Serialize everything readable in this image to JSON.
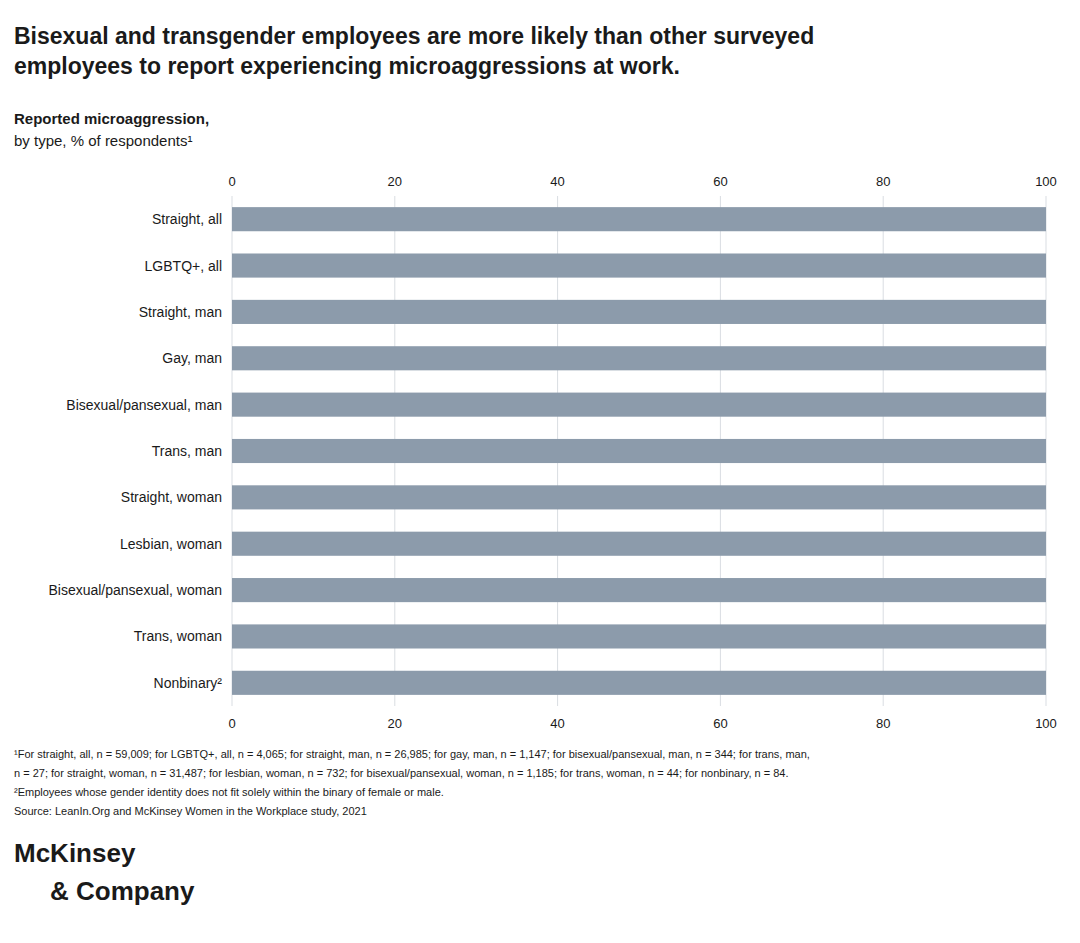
{
  "chart_data": {
    "type": "bar",
    "orientation": "horizontal",
    "title": "Bisexual and transgender employees are more likely than other surveyed\nemployees to report experiencing microaggressions at work.",
    "subtitle": "Reported microaggression,\nby type, % of respondents¹",
    "categories": [
      "Straight, all",
      "LGBTQ+, all",
      "Straight, man",
      "Gay, man",
      "Bisexual/pansexual, man",
      "Trans, man",
      "Straight, woman",
      "Lesbian, woman",
      "Bisexual/pansexual, woman",
      "Trans, woman",
      "Nonbinary²"
    ],
    "values": [
      100,
      100,
      100,
      100,
      100,
      100,
      100,
      100,
      100,
      100,
      100
    ],
    "color": "#8c9bab",
    "xlim": [
      0,
      100
    ],
    "xticks": [
      0,
      20,
      40,
      60,
      80,
      100
    ],
    "grid": true,
    "annotations": [
      "¹For straight, all, n = 59,009; for LGBTQ+, all, n = 4,065; for straight, man, n = 26,985; for gay, man, n = 1,147; for bisexual/pansexual, man, n = 344; for trans, man,",
      "  n = 27; for straight, woman, n = 31,487; for lesbian, woman, n = 732; for bisexual/pansexual, woman, n = 1,185; for trans, woman, n = 44; for nonbinary, n = 84.",
      "²Employees whose gender identity does not fit solely within the binary of female or male.",
      "Source: LeanIn.Org and McKinsey Women in the Workplace study, 2021",
      "McKinsey\n& Company"
    ]
  }
}
